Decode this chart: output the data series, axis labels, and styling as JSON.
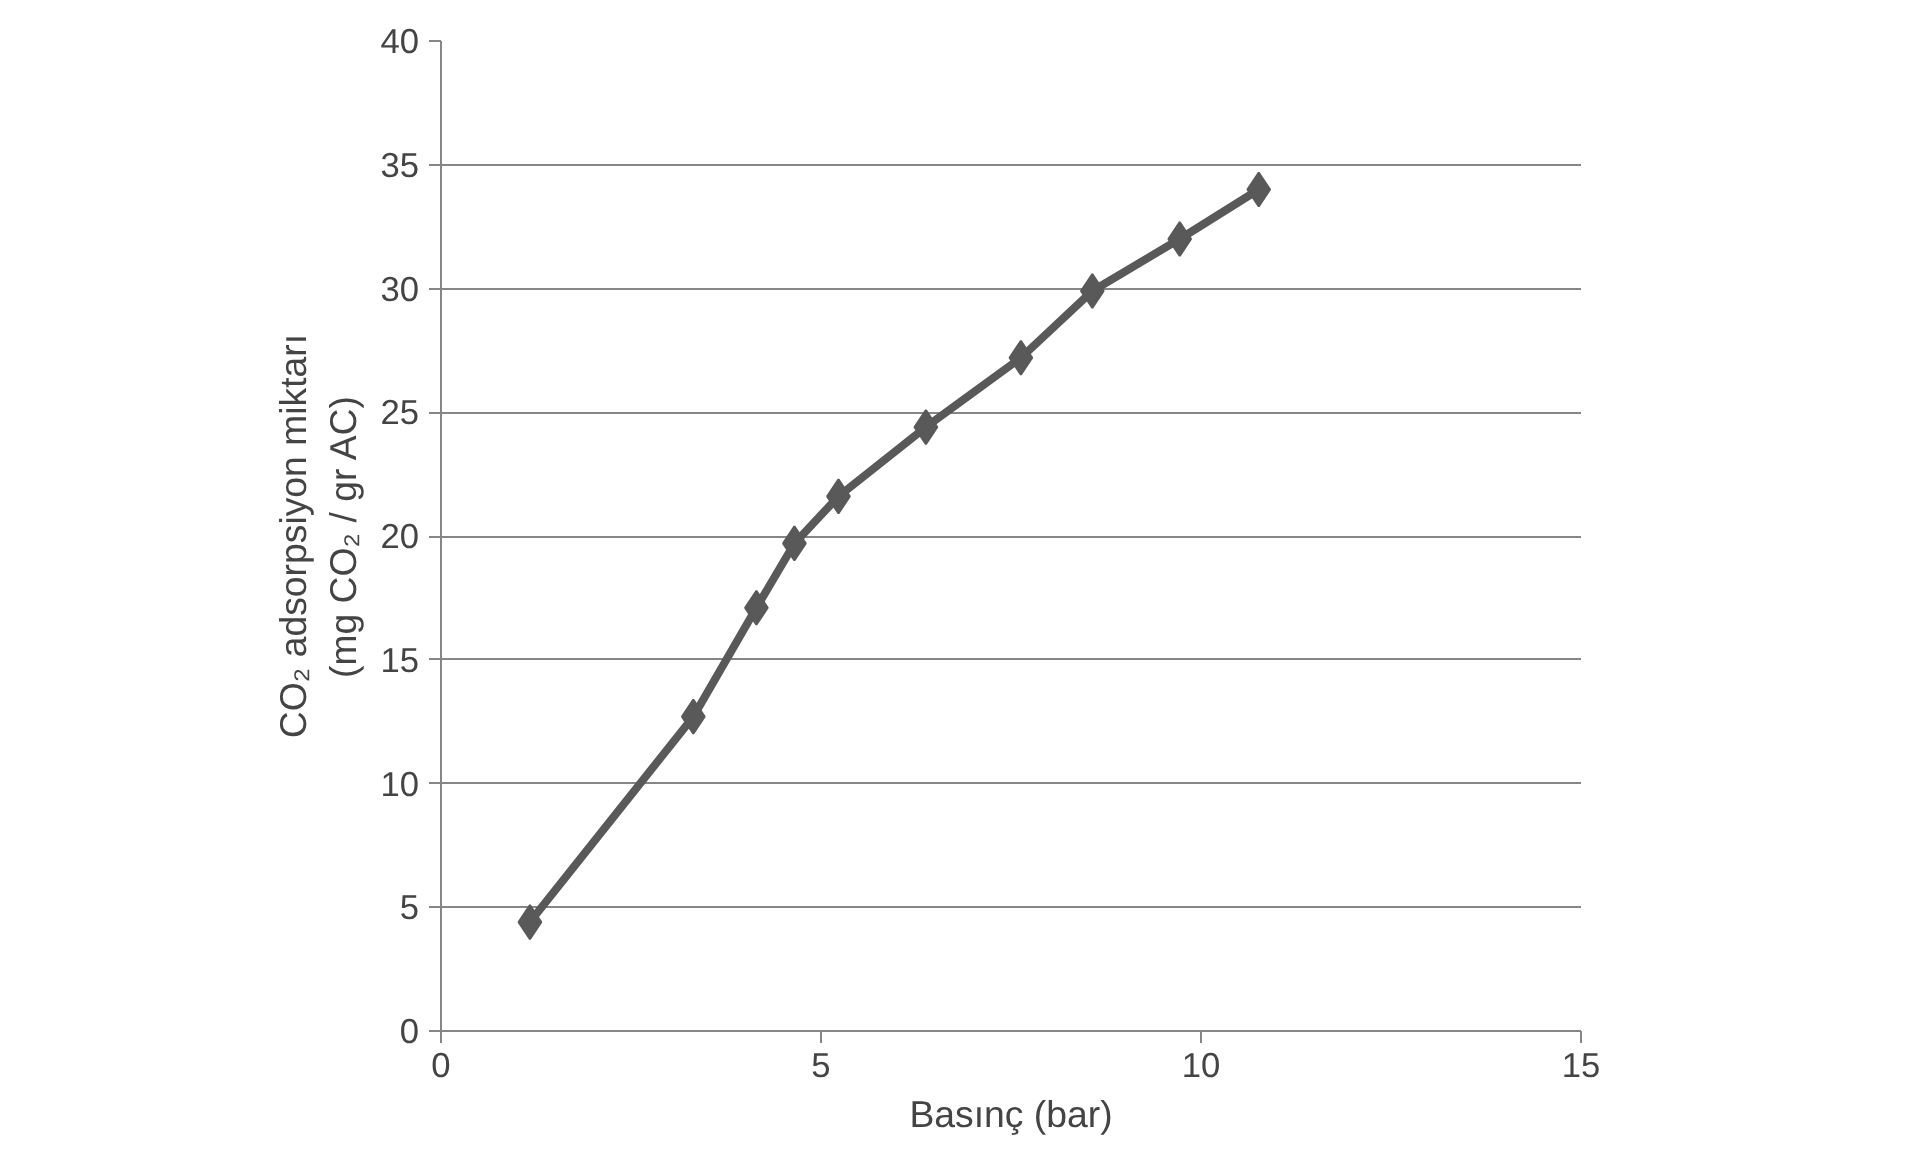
{
  "chart_data": {
    "type": "line",
    "xlabel": "Basınç (bar)",
    "ylabel": "CO₂ adsorpsiyon miktarı\n(mg CO₂ / gr AC)",
    "x": [
      1.17,
      3.32,
      4.15,
      4.65,
      5.23,
      6.38,
      7.63,
      8.57,
      9.72,
      10.76
    ],
    "series": [
      {
        "color": "#595959",
        "values": [
          4.4,
          12.7,
          17.1,
          19.7,
          21.6,
          24.4,
          27.2,
          29.9,
          32.0,
          34.0
        ]
      }
    ],
    "xlim": [
      0,
      15
    ],
    "xticks": [
      0,
      5,
      10,
      15
    ],
    "ylim": [
      0,
      40
    ],
    "yticks": [
      0,
      5,
      10,
      15,
      20,
      25,
      30,
      35,
      40
    ],
    "grid": "y",
    "marker": "diamond",
    "line_style": "solid"
  }
}
